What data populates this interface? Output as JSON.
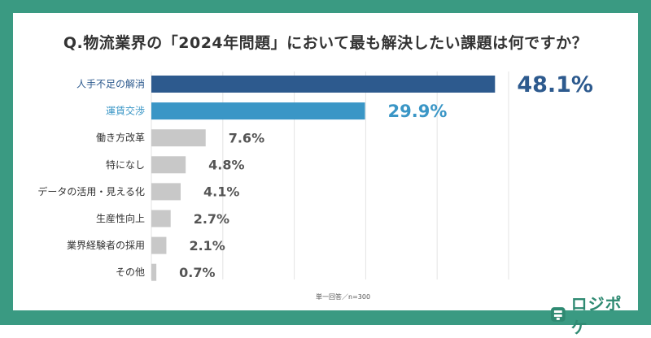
{
  "chart_data": {
    "type": "bar",
    "orientation": "horizontal",
    "title": "Q.物流業界の「2024年問題」において最も解決したい課題は何ですか？",
    "categories": [
      "人手不足の解消",
      "運賃交渉",
      "働き方改革",
      "特になし",
      "データの活用・見える化",
      "生産性向上",
      "業界経験者の採用",
      "その他"
    ],
    "values": [
      48.1,
      29.9,
      7.6,
      4.8,
      4.1,
      2.7,
      2.1,
      0.7
    ],
    "value_labels": [
      "48.1%",
      "29.9%",
      "7.6%",
      "4.8%",
      "4.1%",
      "2.7%",
      "2.1%",
      "0.7%"
    ],
    "xlim": [
      0,
      50
    ],
    "grid": true,
    "colors": [
      "#2d5a8e",
      "#3a96c6",
      "#c8c8c8",
      "#c8c8c8",
      "#c8c8c8",
      "#c8c8c8",
      "#c8c8c8",
      "#c8c8c8"
    ],
    "label_colors": [
      "#2d5a8e",
      "#3a96c6",
      "#555555",
      "#555555",
      "#555555",
      "#555555",
      "#555555",
      "#555555"
    ],
    "category_colors": [
      "#2d5a8e",
      "#3a96c6",
      "#333333",
      "#333333",
      "#333333",
      "#333333",
      "#333333",
      "#333333"
    ]
  },
  "note": "単一回答／n=300",
  "brand": {
    "name": "ロジポケ",
    "icon": "logo-icon",
    "color": "#2f8a72"
  }
}
